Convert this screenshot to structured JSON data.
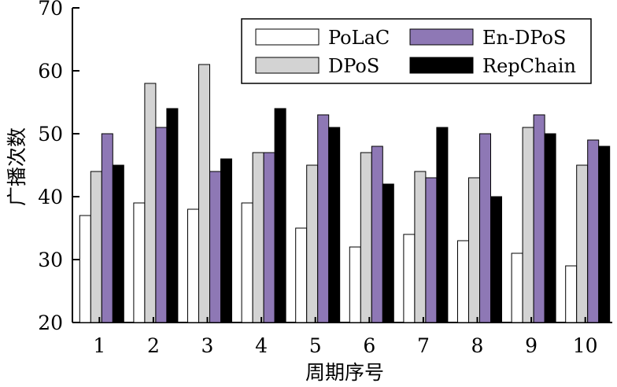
{
  "chart_data": {
    "type": "bar",
    "xlabel": "周期序号",
    "ylabel": "广播次数",
    "ylim": [
      20,
      70
    ],
    "yticks": [
      20,
      30,
      40,
      50,
      60,
      70
    ],
    "categories": [
      "1",
      "2",
      "3",
      "4",
      "5",
      "6",
      "7",
      "8",
      "9",
      "10"
    ],
    "legend_position": "top-right",
    "series": [
      {
        "name": "PoLaC",
        "color": "#ffffff",
        "values": [
          37,
          39,
          38,
          39,
          35,
          32,
          34,
          33,
          31,
          29
        ]
      },
      {
        "name": "DPoS",
        "color": "#d3d3d3",
        "values": [
          44,
          58,
          61,
          47,
          45,
          47,
          44,
          43,
          51,
          45
        ]
      },
      {
        "name": "En-DPoS",
        "color": "#8e78b5",
        "values": [
          50,
          51,
          44,
          47,
          53,
          48,
          43,
          50,
          53,
          49
        ]
      },
      {
        "name": "RepChain",
        "color": "#000000",
        "values": [
          45,
          54,
          46,
          54,
          51,
          42,
          51,
          40,
          50,
          48
        ]
      }
    ]
  }
}
